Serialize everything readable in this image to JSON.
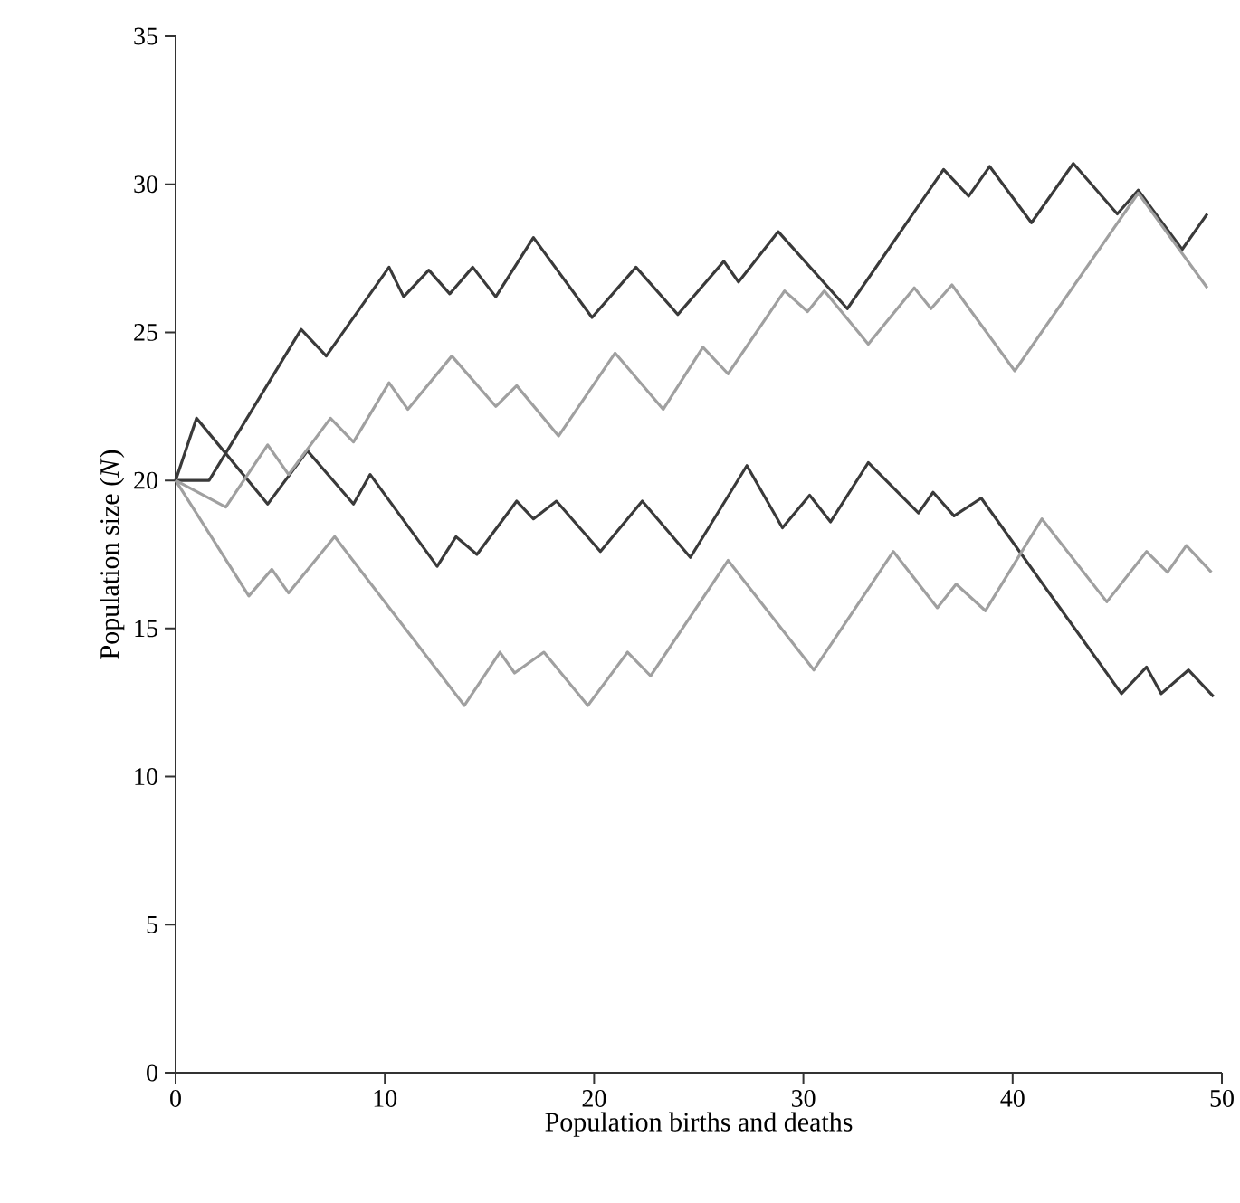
{
  "chart_data": {
    "type": "line",
    "xlabel": "Population births and deaths",
    "ylabel": "Population size (*N*)",
    "xlim": [
      0,
      50
    ],
    "ylim": [
      0,
      35
    ],
    "xticks": [
      0,
      10,
      20,
      30,
      40,
      50
    ],
    "yticks": [
      0,
      5,
      10,
      15,
      20,
      25,
      30,
      35
    ],
    "series": [
      {
        "color": "#3a3a3a",
        "x": [
          0,
          1.6,
          6.0,
          7.2,
          10.2,
          10.9,
          12.1,
          13.1,
          14.2,
          15.3,
          17.1,
          19.9,
          22.0,
          24.0,
          26.2,
          26.9,
          28.8,
          32.1,
          36.7,
          37.9,
          38.9,
          40.9,
          42.9,
          45.0,
          46.0,
          48.1,
          49.3
        ],
        "values": [
          20,
          20,
          25.1,
          24.2,
          27.2,
          26.2,
          27.1,
          26.3,
          27.2,
          26.2,
          28.2,
          25.5,
          27.2,
          25.6,
          27.4,
          26.7,
          28.4,
          25.8,
          30.5,
          29.6,
          30.6,
          28.7,
          30.7,
          29.0,
          29.8,
          27.8,
          29.0
        ]
      },
      {
        "color": "#3a3a3a",
        "x": [
          0,
          1.0,
          4.4,
          6.3,
          8.5,
          9.3,
          12.5,
          13.4,
          14.4,
          16.3,
          17.1,
          18.2,
          20.3,
          22.3,
          24.6,
          27.3,
          29.0,
          30.3,
          31.3,
          33.1,
          35.5,
          36.2,
          37.2,
          38.5,
          45.2,
          46.4,
          47.1,
          48.4,
          49.6
        ],
        "values": [
          20,
          22.1,
          19.2,
          21.0,
          19.2,
          20.2,
          17.1,
          18.1,
          17.5,
          19.3,
          18.7,
          19.3,
          17.6,
          19.3,
          17.4,
          20.5,
          18.4,
          19.5,
          18.6,
          20.6,
          18.9,
          19.6,
          18.8,
          19.4,
          12.8,
          13.7,
          12.8,
          13.6,
          12.7
        ]
      },
      {
        "color": "#a0a0a0",
        "x": [
          0,
          2.4,
          4.4,
          5.4,
          7.4,
          8.5,
          10.2,
          11.1,
          13.2,
          15.3,
          16.3,
          18.3,
          21.0,
          23.3,
          25.2,
          26.4,
          29.1,
          30.2,
          31.0,
          33.1,
          35.3,
          36.1,
          37.1,
          40.1,
          46.0,
          49.3
        ],
        "values": [
          20,
          19.1,
          21.2,
          20.2,
          22.1,
          21.3,
          23.3,
          22.4,
          24.2,
          22.5,
          23.2,
          21.5,
          24.3,
          22.4,
          24.5,
          23.6,
          26.4,
          25.7,
          26.4,
          24.6,
          26.5,
          25.8,
          26.6,
          23.7,
          29.7,
          26.5
        ]
      },
      {
        "color": "#a0a0a0",
        "x": [
          0,
          3.5,
          4.6,
          5.4,
          7.6,
          13.8,
          15.5,
          16.2,
          17.6,
          19.7,
          21.6,
          22.7,
          26.4,
          30.5,
          34.3,
          36.4,
          37.3,
          38.7,
          41.4,
          44.5,
          46.4,
          47.4,
          48.3,
          49.5
        ],
        "values": [
          20,
          16.1,
          17.0,
          16.2,
          18.1,
          12.4,
          14.2,
          13.5,
          14.2,
          12.4,
          14.2,
          13.4,
          17.3,
          13.6,
          17.6,
          15.7,
          16.5,
          15.6,
          18.7,
          15.9,
          17.6,
          16.9,
          17.8,
          16.9
        ]
      }
    ]
  }
}
